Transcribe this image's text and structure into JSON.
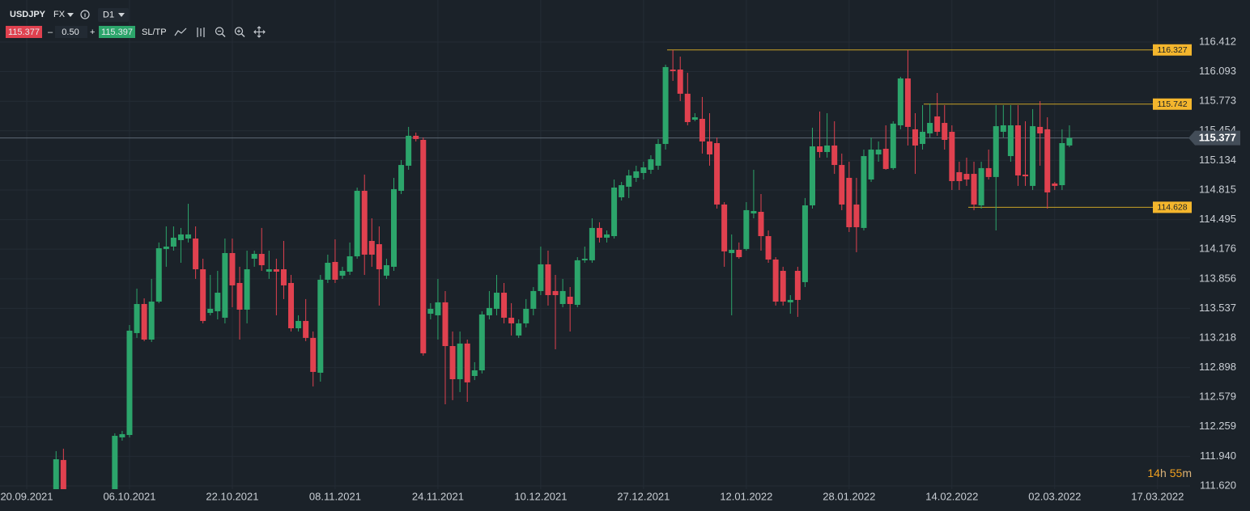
{
  "toolbar": {
    "symbol": "USDJPY",
    "market": "FX",
    "timeframe": "D1",
    "bid": "115.377",
    "minus": "–",
    "volume": "0.50",
    "plus": "+",
    "ask": "115.397",
    "sltp": "SL/TP"
  },
  "countdown": [
    "14",
    "h",
    "55",
    "m"
  ],
  "chart_data": {
    "type": "candlestick",
    "up_color": "#2ca56b",
    "down_color": "#e0414f",
    "level_color": "#c9a227",
    "grid": true,
    "ylim": [
      111.585,
      116.866
    ],
    "yticks": [
      116.412,
      116.093,
      115.773,
      115.454,
      115.134,
      114.815,
      114.495,
      114.176,
      113.856,
      113.537,
      113.218,
      112.898,
      112.579,
      112.259,
      {
        "value": 111.94,
        "label": "111.940"
      },
      {
        "value": 111.62,
        "label": "111.620"
      }
    ],
    "current_price": 115.377,
    "price_levels": [
      116.327,
      115.742,
      114.628
    ],
    "categories": [
      "20.09.2021",
      null,
      null,
      null,
      null,
      null,
      null,
      null,
      null,
      null,
      null,
      null,
      null,
      null,
      "06.10.2021",
      null,
      null,
      null,
      null,
      null,
      null,
      null,
      null,
      null,
      null,
      null,
      null,
      null,
      "22.10.2021",
      null,
      null,
      null,
      null,
      null,
      null,
      null,
      null,
      null,
      null,
      null,
      null,
      null,
      "08.11.2021",
      null,
      null,
      null,
      null,
      null,
      null,
      null,
      null,
      null,
      null,
      null,
      null,
      null,
      "24.11.2021",
      null,
      null,
      null,
      null,
      null,
      null,
      null,
      null,
      null,
      null,
      null,
      null,
      null,
      "10.12.2021",
      null,
      null,
      null,
      null,
      null,
      null,
      null,
      null,
      null,
      null,
      null,
      null,
      null,
      "27.12.2021",
      null,
      null,
      null,
      null,
      null,
      null,
      null,
      null,
      null,
      null,
      null,
      null,
      null,
      "12.01.2022",
      null,
      null,
      null,
      null,
      null,
      null,
      null,
      null,
      null,
      null,
      null,
      null,
      null,
      "28.01.2022",
      null,
      null,
      null,
      null,
      null,
      null,
      null,
      null,
      null,
      null,
      null,
      null,
      null,
      "14.02.2022",
      null,
      null,
      null,
      null,
      null,
      null,
      null,
      null,
      null,
      null,
      null,
      null,
      null,
      "02.03.2022",
      null,
      null,
      null,
      null,
      null,
      null,
      null,
      null,
      null,
      null,
      null,
      null,
      null,
      "17.03.2022"
    ],
    "open": [
      null,
      null,
      null,
      null,
      111.524,
      111.9,
      null,
      null,
      null,
      null,
      null,
      null,
      111.524,
      112.144,
      112.17,
      113.27,
      113.584,
      113.2,
      113.61,
      114.178,
      114.204,
      114.274,
      114.291,
      114.291,
      113.959,
      113.488,
      113.506,
      113.436,
      114.134,
      113.811,
      113.523,
      114.073,
      114.125,
      113.933,
      113.959,
      113.959,
      113.811,
      113.322,
      113.401,
      113.218,
      112.842,
      113.846,
      114.038,
      113.89,
      113.933,
      114.099,
      114.806,
      114.265,
      114.23,
      113.89,
      113.986,
      114.806,
      115.077,
      115.4,
      115.356,
      113.479,
      113.462,
      113.602,
      113.13,
      112.772,
      113.157,
      112.807,
      112.868,
      113.462,
      113.532,
      113.706,
      113.436,
      113.244,
      113.375,
      113.532,
      113.724,
      114.012,
      113.724,
      113.584,
      113.663,
      113.575,
      114.056,
      114.056,
      114.405,
      114.3,
      114.317,
      114.736,
      114.85,
      114.946,
      114.998,
      115.033,
      115.077,
      115.312,
      116.115,
      116.115,
      115.854,
      115.574,
      115.583,
      115.339,
      115.321,
      114.658,
      114.134,
      114.169,
      114.178,
      114.562,
      114.579,
      114.317,
      114.064,
      113.942,
      113.602,
      113.942,
      113.82,
      114.649,
      115.286,
      115.225,
      115.295,
      115.085,
      114.946,
      114.658,
      114.405,
      114.928,
      115.199,
      115.26,
      115.051,
      115.513,
      116.019,
      115.47,
      115.312,
      115.426,
      115.609,
      115.539,
      115.443,
      115.007,
      114.989,
      114.989,
      114.649,
      115.051,
      114.955,
      115.443,
      115.181,
      115.513,
      114.981,
      114.859,
      115.496,
      115.47,
      114.885,
      114.867,
      115.295,
      null,
      null,
      null,
      null,
      null,
      null,
      null,
      null,
      null,
      null,
      null,
      null
    ],
    "high": [
      null,
      null,
      null,
      null,
      111.996,
      112.022,
      null,
      null,
      null,
      null,
      null,
      null,
      112.188,
      112.214,
      113.357,
      113.75,
      113.645,
      113.855,
      114.248,
      114.422,
      114.422,
      114.405,
      114.666,
      114.422,
      114.073,
      113.898,
      113.942,
      114.291,
      114.291,
      113.986,
      114.16,
      114.16,
      114.405,
      114.16,
      114.073,
      114.265,
      113.898,
      113.462,
      113.637,
      113.287,
      113.898,
      114.117,
      114.282,
      113.986,
      114.248,
      114.841,
      114.981,
      114.509,
      114.422,
      114.073,
      114.946,
      115.138,
      115.496,
      115.435,
      115.382,
      113.593,
      113.855,
      113.724,
      113.287,
      113.287,
      113.2,
      112.956,
      113.506,
      113.724,
      113.898,
      113.811,
      113.593,
      113.418,
      113.637,
      113.767,
      114.204,
      114.16,
      113.898,
      113.855,
      113.767,
      114.09,
      114.204,
      114.509,
      114.466,
      114.378,
      114.928,
      114.902,
      115.033,
      115.077,
      115.12,
      115.19,
      115.365,
      116.168,
      116.325,
      116.255,
      116.08,
      115.644,
      115.819,
      115.644,
      115.382,
      114.684,
      114.335,
      114.248,
      114.684,
      115.033,
      114.771,
      114.378,
      114.09,
      113.986,
      113.68,
      113.986,
      114.728,
      115.487,
      115.662,
      115.644,
      115.557,
      115.208,
      115.12,
      114.946,
      115.251,
      115.382,
      115.339,
      115.513,
      115.557,
      116.037,
      116.325,
      115.644,
      115.731,
      115.749,
      115.862,
      115.731,
      115.513,
      115.12,
      115.164,
      115.12,
      115.12,
      115.251,
      115.731,
      115.731,
      115.731,
      115.731,
      115.557,
      115.688,
      115.775,
      115.6,
      114.902,
      115.47,
      115.513,
      null,
      null,
      null,
      null,
      null,
      null,
      null,
      null,
      null,
      null,
      null,
      null
    ],
    "low": [
      null,
      null,
      null,
      null,
      111.498,
      111.498,
      null,
      null,
      null,
      null,
      null,
      null,
      111.498,
      112.109,
      112.144,
      113.218,
      113.183,
      113.174,
      113.593,
      113.986,
      114.16,
      114.029,
      114.248,
      113.855,
      113.375,
      113.462,
      113.418,
      113.375,
      113.549,
      113.2,
      113.375,
      113.986,
      113.942,
      113.855,
      113.462,
      113.637,
      113.287,
      113.287,
      113.183,
      112.694,
      112.746,
      113.811,
      113.811,
      113.855,
      113.898,
      114.073,
      113.898,
      113.986,
      113.567,
      113.855,
      113.942,
      114.771,
      115.033,
      115.339,
      113.026,
      113.418,
      113.2,
      112.502,
      112.546,
      112.633,
      112.528,
      112.763,
      112.834,
      113.418,
      113.462,
      113.375,
      113.244,
      113.218,
      113.331,
      113.462,
      113.68,
      113.567,
      113.095,
      113.549,
      113.287,
      113.549,
      114.029,
      114.029,
      114.248,
      114.248,
      114.291,
      114.701,
      114.728,
      114.902,
      114.928,
      114.989,
      115.033,
      115.251,
      115.993,
      115.775,
      115.513,
      115.557,
      115.208,
      115.077,
      114.614,
      113.986,
      113.462,
      114.073,
      114.16,
      114.509,
      114.16,
      114.029,
      113.567,
      113.567,
      113.479,
      113.445,
      113.767,
      114.614,
      115.164,
      115.164,
      114.989,
      114.597,
      114.361,
      114.143,
      114.378,
      114.902,
      115.12,
      115.033,
      115.033,
      115.47,
      115.295,
      114.989,
      115.251,
      115.382,
      115.4,
      115.251,
      114.815,
      114.815,
      114.859,
      114.597,
      114.614,
      114.928,
      114.378,
      115.382,
      115.12,
      114.859,
      114.859,
      114.815,
      115.077,
      114.614,
      114.815,
      114.815,
      115.277,
      null,
      null,
      null,
      null,
      null,
      null,
      null,
      null,
      null,
      null,
      null,
      null
    ],
    "close": [
      null,
      null,
      null,
      null,
      111.908,
      111.524,
      null,
      null,
      null,
      null,
      null,
      null,
      112.161,
      112.179,
      113.296,
      113.584,
      113.2,
      113.61,
      114.186,
      114.204,
      114.3,
      114.335,
      114.335,
      113.959,
      113.401,
      113.532,
      113.706,
      114.134,
      113.785,
      113.523,
      113.959,
      114.125,
      114.003,
      113.959,
      113.933,
      113.785,
      113.322,
      113.401,
      113.218,
      112.851,
      113.846,
      114.029,
      113.846,
      113.942,
      114.099,
      114.806,
      114.117,
      114.117,
      113.959,
      114.003,
      114.824,
      115.085,
      115.4,
      115.365,
      113.052,
      113.532,
      113.602,
      113.13,
      112.772,
      113.157,
      112.738,
      112.868,
      113.471,
      113.541,
      113.706,
      113.436,
      113.375,
      113.375,
      113.532,
      113.724,
      114.012,
      113.68,
      113.68,
      113.724,
      113.584,
      114.056,
      114.073,
      114.405,
      114.3,
      114.335,
      114.841,
      114.867,
      114.972,
      115.016,
      115.059,
      115.147,
      115.312,
      116.142,
      116.098,
      115.854,
      115.548,
      115.6,
      115.339,
      115.199,
      114.658,
      114.152,
      114.169,
      114.09,
      114.597,
      114.588,
      114.317,
      114.064,
      113.61,
      113.61,
      113.628,
      113.628,
      114.649,
      115.286,
      115.225,
      115.295,
      115.085,
      114.658,
      114.413,
      114.413,
      115.181,
      115.251,
      115.251,
      115.042,
      115.531,
      116.019,
      115.496,
      115.295,
      115.443,
      115.539,
      115.443,
      115.356,
      114.911,
      114.911,
      114.928,
      114.658,
      115.051,
      114.955,
      115.504,
      115.513,
      115.513,
      114.972,
      114.963,
      115.504,
      115.426,
      114.789,
      114.859,
      115.321,
      115.377,
      null,
      null,
      null,
      null,
      null,
      null,
      null,
      null,
      null,
      null,
      null,
      null
    ]
  }
}
